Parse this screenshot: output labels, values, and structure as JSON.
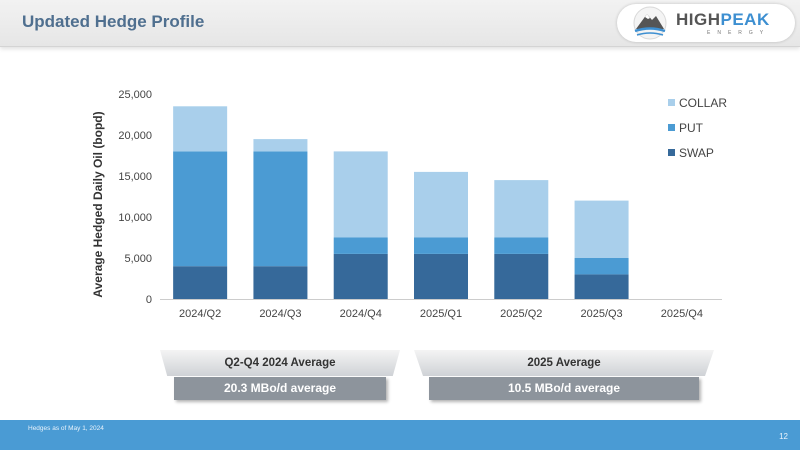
{
  "header": {
    "title": "Updated Hedge Profile",
    "logo": {
      "word_high": "HIGH",
      "word_peak": "PEAK",
      "sub": "ENERGY",
      "icon": "mountain-logo-icon"
    }
  },
  "chart_data": {
    "type": "bar",
    "stacked": true,
    "title": "",
    "xlabel": "",
    "ylabel": "Average Hedged Daily Oil (bopd)",
    "categories": [
      "2024/Q2",
      "2024/Q3",
      "2024/Q4",
      "2025/Q1",
      "2025/Q2",
      "2025/Q3",
      "2025/Q4"
    ],
    "series": [
      {
        "name": "SWAP",
        "values": [
          4000,
          4000,
          5500,
          5500,
          5500,
          3000,
          0
        ],
        "color": "#36699a"
      },
      {
        "name": "PUT",
        "values": [
          14000,
          14000,
          2000,
          2000,
          2000,
          2000,
          0
        ],
        "color": "#4b9bd3"
      },
      {
        "name": "COLLAR",
        "values": [
          5500,
          1500,
          10500,
          8000,
          7000,
          7000,
          0
        ],
        "color": "#a9cfeb"
      }
    ],
    "ylim": [
      0,
      25000
    ],
    "yticks": [
      "0",
      "5,000",
      "10,000",
      "15,000",
      "20,000",
      "25,000"
    ],
    "ytick_values": [
      0,
      5000,
      10000,
      15000,
      20000,
      25000
    ],
    "grid": false,
    "legend": {
      "position": "top-right",
      "order": [
        "COLLAR",
        "PUT",
        "SWAP"
      ]
    }
  },
  "summary": [
    {
      "header": "Q2-Q4 2024 Average",
      "value": "20.3 MBo/d average"
    },
    {
      "header": "2025 Average",
      "value": "10.5 MBo/d average"
    }
  ],
  "footer": {
    "note": "Hedges as of May 1, 2024",
    "page": "12"
  }
}
